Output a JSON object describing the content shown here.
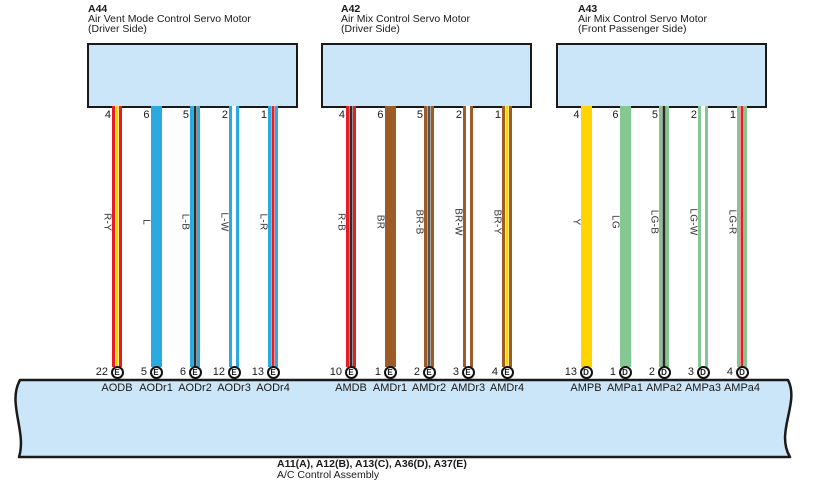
{
  "assembly": {
    "codes": "A11(A), A12(B), A13(C), A36(D), A37(E)",
    "name": "A/C Control Assembly"
  },
  "colors": {
    "box_fill": "#CBE6F8",
    "outline": "#1a1a1a",
    "red": "#E81C24",
    "blue": "#29ABE2",
    "yellow": "#FFD400",
    "brown": "#9D5B28",
    "light_green": "#85C793",
    "black_stripe": "#2D2A26",
    "gray_stripe": "#55504B",
    "white": "#FFFFFF"
  },
  "connectors": [
    {
      "id": "A44",
      "name": "Air Vent Mode Control Servo Motor",
      "location": "(Driver Side)",
      "wires": [
        {
          "pin": "4",
          "code": "R-Y",
          "base": "#E81C24",
          "stripe": "#FFD400",
          "terminal_no": "22",
          "terminal_letter": "E",
          "signal": "AODB"
        },
        {
          "pin": "6",
          "code": "L",
          "base": "#29ABE2",
          "stripe": null,
          "terminal_no": "5",
          "terminal_letter": "E",
          "signal": "AODr1"
        },
        {
          "pin": "5",
          "code": "L-B",
          "base": "#29ABE2",
          "stripe": "#2D2A26",
          "terminal_no": "6",
          "terminal_letter": "E",
          "signal": "AODr2"
        },
        {
          "pin": "2",
          "code": "L-W",
          "base": "#29ABE2",
          "stripe": "#FFFFFF",
          "terminal_no": "12",
          "terminal_letter": "E",
          "signal": "AODr3"
        },
        {
          "pin": "1",
          "code": "L-R",
          "base": "#29ABE2",
          "stripe": "#E81C24",
          "terminal_no": "13",
          "terminal_letter": "E",
          "signal": "AODr4"
        }
      ]
    },
    {
      "id": "A42",
      "name": "Air Mix Control Servo Motor",
      "location": "(Driver Side)",
      "wires": [
        {
          "pin": "4",
          "code": "R-B",
          "base": "#E81C24",
          "stripe": "#2D2A26",
          "terminal_no": "10",
          "terminal_letter": "E",
          "signal": "AMDB"
        },
        {
          "pin": "6",
          "code": "BR",
          "base": "#9D5B28",
          "stripe": null,
          "terminal_no": "1",
          "terminal_letter": "E",
          "signal": "AMDr1"
        },
        {
          "pin": "5",
          "code": "BR-B",
          "base": "#9D5B28",
          "stripe": "#55504B",
          "terminal_no": "2",
          "terminal_letter": "E",
          "signal": "AMDr2"
        },
        {
          "pin": "2",
          "code": "BR-W",
          "base": "#9D5B28",
          "stripe": "#FFFFFF",
          "terminal_no": "3",
          "terminal_letter": "E",
          "signal": "AMDr3"
        },
        {
          "pin": "1",
          "code": "BR-Y",
          "base": "#9D5B28",
          "stripe": "#FFD400",
          "terminal_no": "4",
          "terminal_letter": "E",
          "signal": "AMDr4"
        }
      ]
    },
    {
      "id": "A43",
      "name": "Air Mix Control Servo Motor",
      "location": "(Front Passenger Side)",
      "wires": [
        {
          "pin": "4",
          "code": "Y",
          "base": "#FFD400",
          "stripe": null,
          "terminal_no": "13",
          "terminal_letter": "D",
          "signal": "AMPB"
        },
        {
          "pin": "6",
          "code": "LG",
          "base": "#85C793",
          "stripe": null,
          "terminal_no": "1",
          "terminal_letter": "D",
          "signal": "AMPa1"
        },
        {
          "pin": "5",
          "code": "LG-B",
          "base": "#85C793",
          "stripe": "#2D2A26",
          "terminal_no": "2",
          "terminal_letter": "D",
          "signal": "AMPa2"
        },
        {
          "pin": "2",
          "code": "LG-W",
          "base": "#85C793",
          "stripe": "#FFFFFF",
          "terminal_no": "3",
          "terminal_letter": "D",
          "signal": "AMPa3"
        },
        {
          "pin": "1",
          "code": "LG-R",
          "base": "#85C793",
          "stripe": "#E81C24",
          "terminal_no": "4",
          "terminal_letter": "D",
          "signal": "AMPa4"
        }
      ]
    }
  ]
}
